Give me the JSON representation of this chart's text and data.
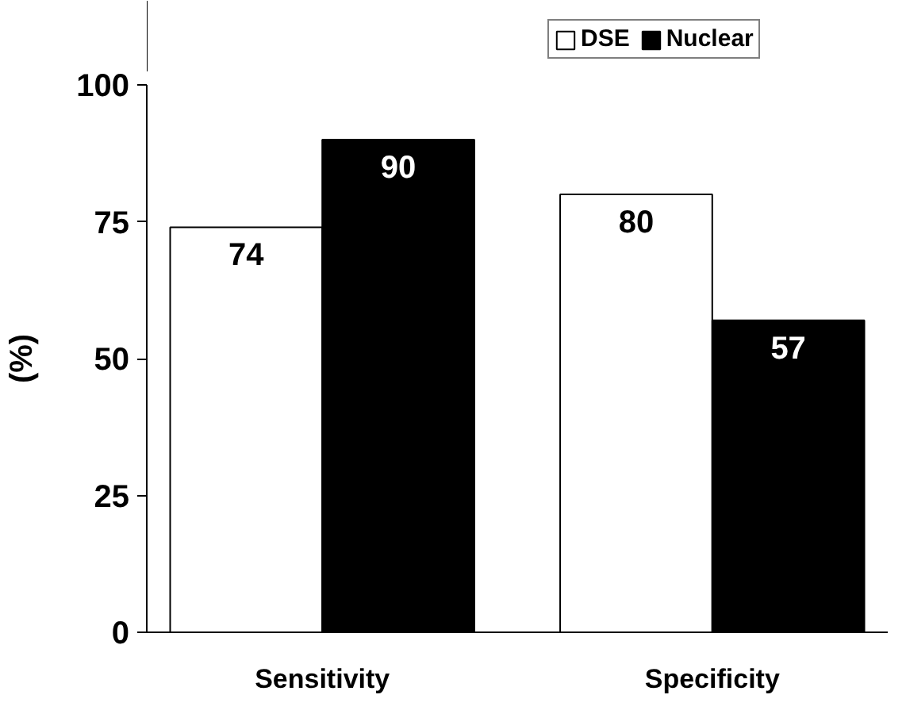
{
  "chart_data": {
    "type": "bar",
    "ylabel": "(%)",
    "categories": [
      "Sensitivity",
      "Specificity"
    ],
    "series": [
      {
        "name": "DSE",
        "color": "#ffffff",
        "values": [
          74,
          80
        ]
      },
      {
        "name": "Nuclear",
        "color": "#000000",
        "values": [
          90,
          57
        ]
      }
    ],
    "ylim": [
      0,
      100
    ],
    "yticks": [
      0,
      25,
      50,
      75,
      100
    ],
    "grid": false,
    "legend": "top",
    "data_labels": true
  }
}
